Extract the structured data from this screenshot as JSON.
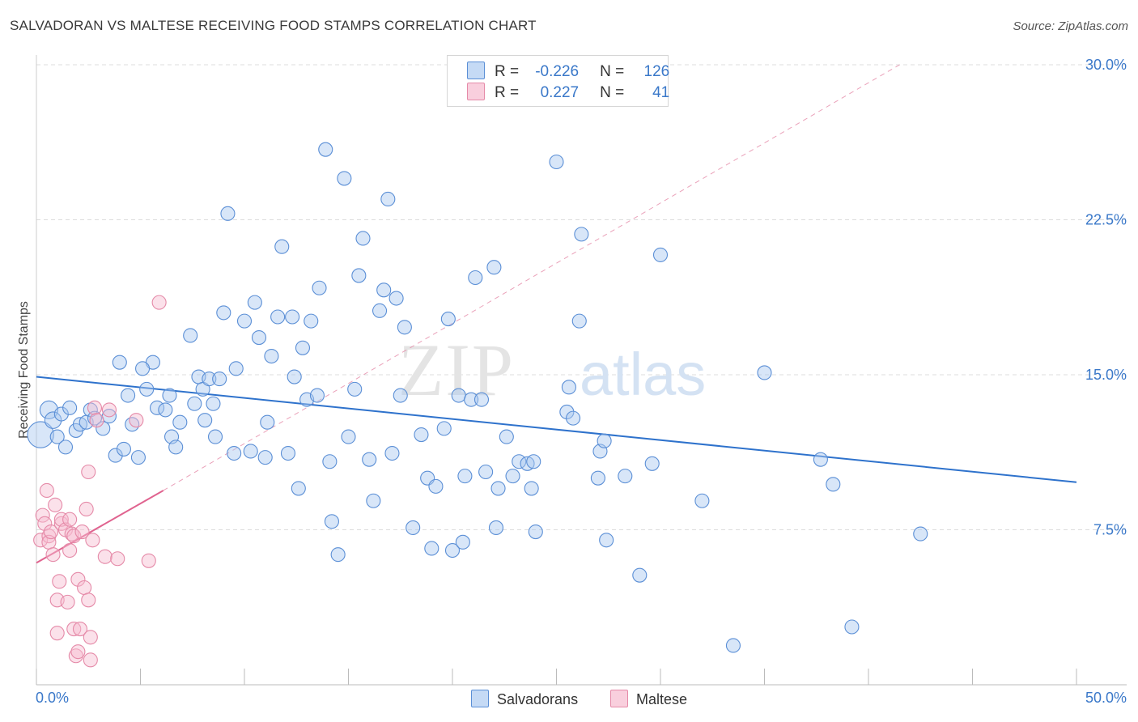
{
  "title": "SALVADORAN VS MALTESE RECEIVING FOOD STAMPS CORRELATION CHART",
  "source": "Source: ZipAtlas.com",
  "watermark": {
    "zip": "ZIP",
    "atlas": "atlas"
  },
  "legend": {
    "rows": [
      {
        "r_label": "R =",
        "r_value": "-0.226",
        "n_label": "N =",
        "n_value": "126"
      },
      {
        "r_label": "R =",
        "r_value": "0.227",
        "n_label": "N =",
        "n_value": "41"
      }
    ]
  },
  "bottom_legend": {
    "series1": "Salvadorans",
    "series2": "Maltese"
  },
  "colors": {
    "blue_fill": "#a8c8f0",
    "blue_stroke": "#5b8fd6",
    "blue_line": "#2e72cc",
    "pink_fill": "#f6bcd0",
    "pink_stroke": "#e58aa8",
    "pink_line": "#e0638f",
    "grid": "#dddddd",
    "tick_text": "#3a78c9"
  },
  "chart_data": {
    "type": "scatter",
    "title": "SALVADORAN VS MALTESE RECEIVING FOOD STAMPS CORRELATION CHART",
    "xlabel": "",
    "ylabel": "Receiving Food Stamps",
    "xlim": [
      0,
      50
    ],
    "ylim": [
      0,
      30
    ],
    "x_tick_labels": [
      "0.0%",
      "50.0%"
    ],
    "y_ticks": [
      7.5,
      15.0,
      22.5,
      30.0
    ],
    "y_tick_labels": [
      "7.5%",
      "15.0%",
      "22.5%",
      "30.0%"
    ],
    "grid": true,
    "series": [
      {
        "name": "Salvadorans",
        "r": -0.226,
        "n": 126,
        "trend": {
          "x": [
            0,
            50
          ],
          "y": [
            14.9,
            9.8
          ],
          "style": "solid"
        },
        "points": [
          [
            0.2,
            12.1,
            1.9
          ],
          [
            0.6,
            13.3,
            1.3
          ],
          [
            0.8,
            12.8,
            1.2
          ],
          [
            1.0,
            12.0,
            1.0
          ],
          [
            1.2,
            13.1,
            1.0
          ],
          [
            1.4,
            11.5,
            1.0
          ],
          [
            1.6,
            13.4,
            1.0
          ],
          [
            1.9,
            12.3,
            1.0
          ],
          [
            2.1,
            12.6,
            1.0
          ],
          [
            2.4,
            12.7,
            1.0
          ],
          [
            2.6,
            13.3,
            1.0
          ],
          [
            2.8,
            12.9,
            1.0
          ],
          [
            3.2,
            12.4,
            1.0
          ],
          [
            3.5,
            13.0,
            1.0
          ],
          [
            3.8,
            11.1,
            1.0
          ],
          [
            4.2,
            11.4,
            1.0
          ],
          [
            4.4,
            14.0,
            1.0
          ],
          [
            4.6,
            12.6,
            1.0
          ],
          [
            4.9,
            11.0,
            1.0
          ],
          [
            5.3,
            14.3,
            1.0
          ],
          [
            5.6,
            15.6,
            1.0
          ],
          [
            5.8,
            13.4,
            1.0
          ],
          [
            6.2,
            13.3,
            1.0
          ],
          [
            6.4,
            14.0,
            1.0
          ],
          [
            6.5,
            12.0,
            1.0
          ],
          [
            6.7,
            11.5,
            1.0
          ],
          [
            4.0,
            15.6,
            1.0
          ],
          [
            5.1,
            15.3,
            1.0
          ],
          [
            6.9,
            12.7,
            1.0
          ],
          [
            7.4,
            16.9,
            1.0
          ],
          [
            7.6,
            13.6,
            1.0
          ],
          [
            7.8,
            14.9,
            1.0
          ],
          [
            8.0,
            14.3,
            1.0
          ],
          [
            8.1,
            12.8,
            1.0
          ],
          [
            8.3,
            14.8,
            1.0
          ],
          [
            8.5,
            13.6,
            1.0
          ],
          [
            8.8,
            14.8,
            1.0
          ],
          [
            8.6,
            12.0,
            1.0
          ],
          [
            9.0,
            18.0,
            1.0
          ],
          [
            9.2,
            22.8,
            1.0
          ],
          [
            9.5,
            11.2,
            1.0
          ],
          [
            9.6,
            15.3,
            1.0
          ],
          [
            10.0,
            17.6,
            1.0
          ],
          [
            10.3,
            11.3,
            1.0
          ],
          [
            10.5,
            18.5,
            1.0
          ],
          [
            10.7,
            16.8,
            1.0
          ],
          [
            11.0,
            11.0,
            1.0
          ],
          [
            11.3,
            15.9,
            1.0
          ],
          [
            11.1,
            12.7,
            1.0
          ],
          [
            11.6,
            17.8,
            1.0
          ],
          [
            11.8,
            21.2,
            1.0
          ],
          [
            12.1,
            11.2,
            1.0
          ],
          [
            12.3,
            17.8,
            1.0
          ],
          [
            12.4,
            14.9,
            1.0
          ],
          [
            12.6,
            9.5,
            1.0
          ],
          [
            12.8,
            16.3,
            1.0
          ],
          [
            13.0,
            13.8,
            1.0
          ],
          [
            13.5,
            14.0,
            1.0
          ],
          [
            13.2,
            17.6,
            1.0
          ],
          [
            13.6,
            19.2,
            1.0
          ],
          [
            13.9,
            25.9,
            1.0
          ],
          [
            14.1,
            10.8,
            1.0
          ],
          [
            14.2,
            7.9,
            1.0
          ],
          [
            14.5,
            6.3,
            1.0
          ],
          [
            14.8,
            24.5,
            1.0
          ],
          [
            15.0,
            12.0,
            1.0
          ],
          [
            15.3,
            14.3,
            1.0
          ],
          [
            15.5,
            19.8,
            1.0
          ],
          [
            15.7,
            21.6,
            1.0
          ],
          [
            16.2,
            8.9,
            1.0
          ],
          [
            16.5,
            18.1,
            1.0
          ],
          [
            16.7,
            19.1,
            1.0
          ],
          [
            16.9,
            23.5,
            1.0
          ],
          [
            16.0,
            10.9,
            1.0
          ],
          [
            17.1,
            11.2,
            1.0
          ],
          [
            17.3,
            18.7,
            1.0
          ],
          [
            17.5,
            14.0,
            1.0
          ],
          [
            17.7,
            17.3,
            1.0
          ],
          [
            18.1,
            7.6,
            1.0
          ],
          [
            18.5,
            12.1,
            1.0
          ],
          [
            18.8,
            10.0,
            1.0
          ],
          [
            19.0,
            6.6,
            1.0
          ],
          [
            19.2,
            9.6,
            1.0
          ],
          [
            19.6,
            12.4,
            1.0
          ],
          [
            19.8,
            17.7,
            1.0
          ],
          [
            20.0,
            6.5,
            1.0
          ],
          [
            20.3,
            14.0,
            1.0
          ],
          [
            20.5,
            6.9,
            1.0
          ],
          [
            20.6,
            10.1,
            1.0
          ],
          [
            20.9,
            13.8,
            1.0
          ],
          [
            21.1,
            19.7,
            1.0
          ],
          [
            21.4,
            13.8,
            1.0
          ],
          [
            21.6,
            10.3,
            1.0
          ],
          [
            22.0,
            20.2,
            1.0
          ],
          [
            22.1,
            7.6,
            1.0
          ],
          [
            22.2,
            9.5,
            1.0
          ],
          [
            22.6,
            12.0,
            1.0
          ],
          [
            22.9,
            10.1,
            1.0
          ],
          [
            23.2,
            10.8,
            1.0
          ],
          [
            23.6,
            10.7,
            1.0
          ],
          [
            23.8,
            9.5,
            1.0
          ],
          [
            23.9,
            10.8,
            1.0
          ],
          [
            24.0,
            7.4,
            1.0
          ],
          [
            25.0,
            25.3,
            1.0
          ],
          [
            25.5,
            13.2,
            1.0
          ],
          [
            25.6,
            14.4,
            1.0
          ],
          [
            25.8,
            12.9,
            1.0
          ],
          [
            26.1,
            17.6,
            1.0
          ],
          [
            26.2,
            21.8,
            1.0
          ],
          [
            27.0,
            10.0,
            1.0
          ],
          [
            27.1,
            11.3,
            1.0
          ],
          [
            27.3,
            11.8,
            1.0
          ],
          [
            27.4,
            7.0,
            1.0
          ],
          [
            28.3,
            10.1,
            1.0
          ],
          [
            29.0,
            5.3,
            1.0
          ],
          [
            29.6,
            10.7,
            1.0
          ],
          [
            30.0,
            20.8,
            1.0
          ],
          [
            32.0,
            8.9,
            1.0
          ],
          [
            33.5,
            1.9,
            1.0
          ],
          [
            35.0,
            15.1,
            1.0
          ],
          [
            37.7,
            10.9,
            1.0
          ],
          [
            38.3,
            9.7,
            1.0
          ],
          [
            39.2,
            2.8,
            1.0
          ],
          [
            42.5,
            7.3,
            1.0
          ]
        ]
      },
      {
        "name": "Maltese",
        "r": 0.227,
        "n": 41,
        "trend": {
          "x": [
            0,
            6.1
          ],
          "y": [
            5.9,
            9.4
          ],
          "style": "solid",
          "extension": {
            "x": [
              6.1,
              41.5
            ],
            "y": [
              9.4,
              30.0
            ],
            "style": "dashed"
          }
        },
        "points": [
          [
            0.2,
            7.0,
            1.0
          ],
          [
            0.3,
            8.2,
            1.0
          ],
          [
            0.4,
            7.8,
            1.0
          ],
          [
            0.5,
            9.4,
            1.0
          ],
          [
            0.6,
            7.2,
            1.0
          ],
          [
            0.6,
            6.9,
            1.0
          ],
          [
            0.7,
            7.4,
            1.0
          ],
          [
            0.8,
            6.3,
            1.0
          ],
          [
            0.9,
            8.7,
            1.0
          ],
          [
            1.0,
            4.1,
            1.0
          ],
          [
            1.0,
            2.5,
            1.0
          ],
          [
            1.1,
            5.0,
            1.0
          ],
          [
            1.2,
            7.8,
            1.0
          ],
          [
            1.2,
            8.0,
            1.0
          ],
          [
            1.4,
            7.5,
            1.0
          ],
          [
            1.5,
            4.0,
            1.0
          ],
          [
            1.6,
            6.5,
            1.0
          ],
          [
            1.6,
            8.0,
            1.0
          ],
          [
            1.7,
            7.3,
            1.0
          ],
          [
            1.8,
            7.2,
            1.0
          ],
          [
            1.8,
            2.7,
            1.0
          ],
          [
            1.9,
            1.4,
            1.0
          ],
          [
            2.0,
            1.6,
            1.0
          ],
          [
            2.0,
            5.1,
            1.0
          ],
          [
            2.1,
            2.7,
            1.0
          ],
          [
            2.2,
            7.4,
            1.0
          ],
          [
            2.3,
            4.7,
            1.0
          ],
          [
            2.4,
            8.5,
            1.0
          ],
          [
            2.5,
            4.1,
            1.0
          ],
          [
            2.5,
            10.3,
            1.0
          ],
          [
            2.6,
            2.3,
            1.0
          ],
          [
            2.6,
            1.2,
            1.0
          ],
          [
            2.7,
            7.0,
            1.0
          ],
          [
            2.8,
            13.4,
            1.0
          ],
          [
            2.9,
            12.8,
            1.0
          ],
          [
            3.3,
            6.2,
            1.0
          ],
          [
            3.5,
            13.3,
            1.0
          ],
          [
            3.9,
            6.1,
            1.0
          ],
          [
            4.8,
            12.8,
            1.0
          ],
          [
            5.4,
            6.0,
            1.0
          ],
          [
            5.9,
            18.5,
            1.0
          ]
        ]
      }
    ]
  }
}
